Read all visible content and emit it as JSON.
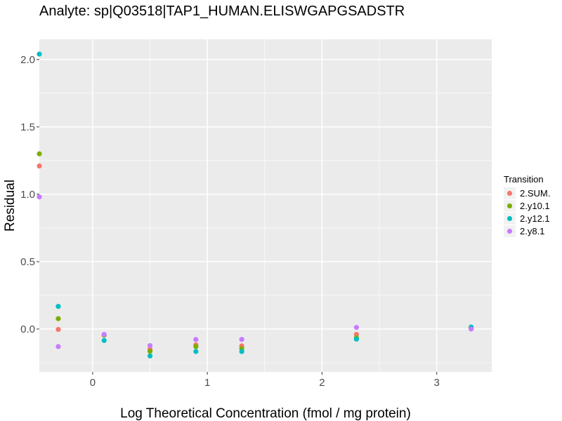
{
  "chart_data": {
    "type": "scatter",
    "title": "Analyte: sp|Q03518|TAP1_HUMAN.ELISWGAPGSADSTR",
    "xlabel": "Log Theoretical Concentration (fmol / mg protein)",
    "ylabel": "Residual",
    "xlim": [
      -0.465,
      3.48
    ],
    "ylim": [
      -0.318,
      2.15
    ],
    "xticks": [
      0,
      1,
      2,
      3
    ],
    "xtick_labels": [
      "0",
      "1",
      "2",
      "3"
    ],
    "yticks": [
      0.0,
      0.5,
      1.0,
      1.5,
      2.0
    ],
    "ytick_labels": [
      "0.0",
      "0.5",
      "1.0",
      "1.5",
      "2.0"
    ],
    "grid": true,
    "legend": {
      "title": "Transition",
      "placement": "right"
    },
    "series": [
      {
        "name": "2.SUM.",
        "color": "#F8766D",
        "x": [
          -0.465,
          -0.3,
          0.1,
          0.5,
          0.9,
          1.3,
          2.3,
          3.3
        ],
        "y": [
          1.21,
          -0.003,
          -0.045,
          -0.15,
          -0.118,
          -0.125,
          -0.04,
          0.005
        ]
      },
      {
        "name": "2.y10.1",
        "color": "#7CAE00",
        "x": [
          -0.465,
          -0.3,
          0.1,
          0.5,
          0.9,
          1.3,
          2.3,
          3.3
        ],
        "y": [
          1.3,
          0.077,
          -0.045,
          -0.165,
          -0.13,
          -0.145,
          -0.065,
          0.008
        ]
      },
      {
        "name": "2.y12.1",
        "color": "#00BFC4",
        "x": [
          -0.465,
          -0.3,
          0.1,
          0.5,
          0.9,
          1.3,
          2.3,
          3.3
        ],
        "y": [
          2.04,
          0.168,
          -0.085,
          -0.2,
          -0.167,
          -0.167,
          -0.075,
          0.015
        ]
      },
      {
        "name": "2.y8.1",
        "color": "#C77CFF",
        "x": [
          -0.465,
          -0.3,
          0.1,
          0.5,
          0.9,
          1.3,
          2.3,
          3.3
        ],
        "y": [
          0.98,
          -0.13,
          -0.04,
          -0.123,
          -0.078,
          -0.077,
          0.012,
          0.0
        ]
      }
    ]
  }
}
